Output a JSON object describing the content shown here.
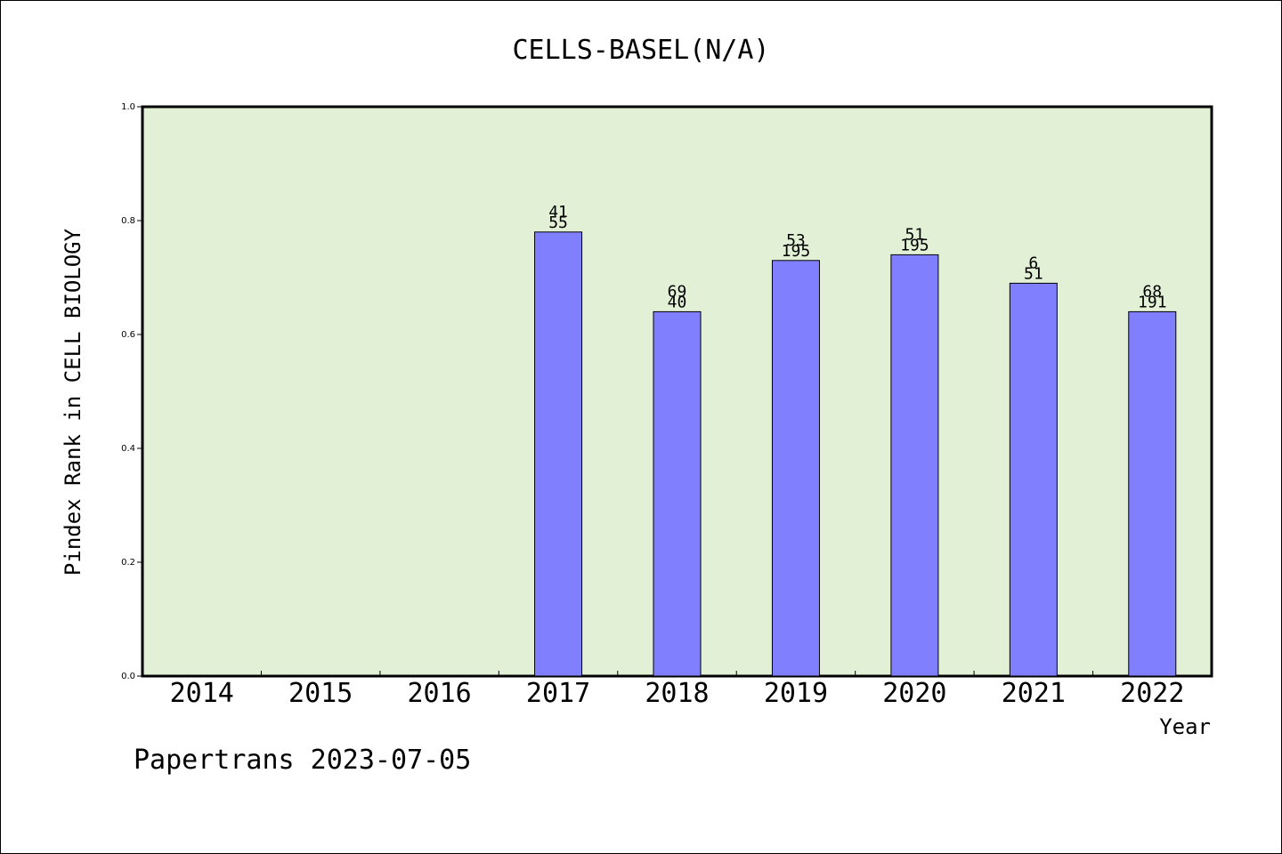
{
  "chart_data": {
    "type": "bar",
    "title": "CELLS-BASEL(N/A)",
    "xlabel": "Year",
    "ylabel": "Pindex Rank in CELL BIOLOGY",
    "categories": [
      "2014",
      "2015",
      "2016",
      "2017",
      "2018",
      "2019",
      "2020",
      "2021",
      "2022"
    ],
    "values": [
      null,
      null,
      null,
      0.78,
      0.64,
      0.73,
      0.74,
      0.69,
      0.64
    ],
    "labels_top": [
      "",
      "",
      "",
      "41",
      "69",
      "53",
      "51",
      "6",
      "68"
    ],
    "labels_bottom": [
      "",
      "",
      "",
      "55",
      "40",
      "195",
      "195",
      "51",
      "191"
    ],
    "yticks": [
      "0.0",
      "0.2",
      "0.4",
      "0.6",
      "0.8",
      "1.0"
    ],
    "ylim": [
      0,
      1.0
    ],
    "grid": false,
    "colors": {
      "plot_background": "#e2f0d5",
      "bar_fill": "#8080ff",
      "bar_stroke": "#000000"
    }
  },
  "footer": {
    "watermark": "Papertrans 2023-07-05"
  }
}
